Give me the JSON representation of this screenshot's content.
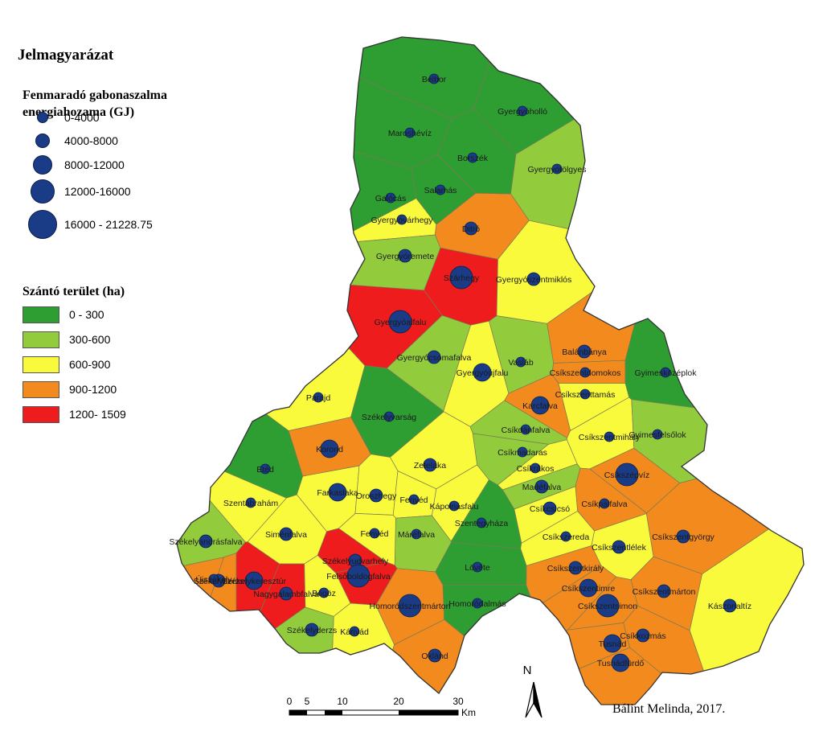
{
  "legend": {
    "title": "Jelmagyarázat",
    "energy_title": "Fenmaradó gabonaszalma energiahozama (GJ)",
    "energy_classes": [
      {
        "label": "0-4000",
        "rank": 1
      },
      {
        "label": "4000-8000",
        "rank": 2
      },
      {
        "label": "8000-12000",
        "rank": 3
      },
      {
        "label": "12000-16000",
        "rank": 4
      },
      {
        "label": "16000 - 21228.75",
        "rank": 5
      }
    ],
    "area_title": "Szántó terület (ha)",
    "area_classes": [
      {
        "label": "0 - 300",
        "color": "#2e9e32"
      },
      {
        "label": "300-600",
        "color": "#92cc3c"
      },
      {
        "label": "600-900",
        "color": "#fafa3c"
      },
      {
        "label": "900-1200",
        "color": "#f28a1e"
      },
      {
        "label": "1200- 1509",
        "color": "#ee1c1c"
      }
    ],
    "dot_color": "#1a3c87"
  },
  "places": [
    {
      "name": "Belbor",
      "lon": 540,
      "lat": 98,
      "area_class": 0,
      "energy_rank": 1
    },
    {
      "name": "Gyergyóholló",
      "lon": 650,
      "lat": 138,
      "area_class": 0,
      "energy_rank": 1
    },
    {
      "name": "Maroshévíz",
      "lon": 510,
      "lat": 165,
      "area_class": 0,
      "energy_rank": 1
    },
    {
      "name": "Borszék",
      "lon": 588,
      "lat": 196,
      "area_class": 0,
      "energy_rank": 1
    },
    {
      "name": "Gyergyótölgyes",
      "lon": 693,
      "lat": 210,
      "area_class": 1,
      "energy_rank": 1
    },
    {
      "name": "Salamás",
      "lon": 548,
      "lat": 236,
      "area_class": 0,
      "energy_rank": 1
    },
    {
      "name": "Galócás",
      "lon": 486,
      "lat": 246,
      "area_class": 0,
      "energy_rank": 1
    },
    {
      "name": "Gyergyóvárhegy",
      "lon": 500,
      "lat": 273,
      "area_class": 2,
      "energy_rank": 1
    },
    {
      "name": "Ditró",
      "lon": 586,
      "lat": 284,
      "area_class": 3,
      "energy_rank": 2
    },
    {
      "name": "Gyergyóremete",
      "lon": 504,
      "lat": 318,
      "area_class": 1,
      "energy_rank": 2
    },
    {
      "name": "Szárhegy",
      "lon": 574,
      "lat": 345,
      "area_class": 4,
      "energy_rank": 4
    },
    {
      "name": "Gyergyószentmiklós",
      "lon": 664,
      "lat": 347,
      "area_class": 2,
      "energy_rank": 2
    },
    {
      "name": "Gyergyóalfalu",
      "lon": 498,
      "lat": 400,
      "area_class": 4,
      "energy_rank": 4
    },
    {
      "name": "Gyergyócsomafalva",
      "lon": 540,
      "lat": 444,
      "area_class": 1,
      "energy_rank": 2
    },
    {
      "name": "Vasláb",
      "lon": 648,
      "lat": 450,
      "area_class": 1,
      "energy_rank": 1
    },
    {
      "name": "Balánbánya",
      "lon": 727,
      "lat": 437,
      "area_class": 3,
      "energy_rank": 2
    },
    {
      "name": "Gyergyóújfalu",
      "lon": 600,
      "lat": 463,
      "area_class": 2,
      "energy_rank": 3
    },
    {
      "name": "Csíkszentdomokos",
      "lon": 728,
      "lat": 463,
      "area_class": 3,
      "energy_rank": 1
    },
    {
      "name": "Gyimesközéplok",
      "lon": 828,
      "lat": 463,
      "area_class": 0,
      "energy_rank": 1
    },
    {
      "name": "Csíkszenttamás",
      "lon": 728,
      "lat": 490,
      "area_class": 2,
      "energy_rank": 1
    },
    {
      "name": "Parajd",
      "lon": 396,
      "lat": 494,
      "area_class": 2,
      "energy_rank": 1
    },
    {
      "name": "Karcfalva",
      "lon": 672,
      "lat": 504,
      "area_class": 3,
      "energy_rank": 3
    },
    {
      "name": "Székelyvarság",
      "lon": 484,
      "lat": 518,
      "area_class": 0,
      "energy_rank": 1
    },
    {
      "name": "Csíkdánfalva",
      "lon": 654,
      "lat": 534,
      "area_class": 1,
      "energy_rank": 1
    },
    {
      "name": "Csíkszentmihály",
      "lon": 758,
      "lat": 543,
      "area_class": 2,
      "energy_rank": 1
    },
    {
      "name": "Gyimesfelsőlok",
      "lon": 818,
      "lat": 540,
      "area_class": 1,
      "energy_rank": 1
    },
    {
      "name": "Korond",
      "lon": 410,
      "lat": 558,
      "area_class": 3,
      "energy_rank": 3
    },
    {
      "name": "Csíkmadaras",
      "lon": 650,
      "lat": 562,
      "area_class": 1,
      "energy_rank": 1
    },
    {
      "name": "Zetelaka",
      "lon": 535,
      "lat": 578,
      "area_class": 2,
      "energy_rank": 2
    },
    {
      "name": "Etéd",
      "lon": 330,
      "lat": 583,
      "area_class": 0,
      "energy_rank": 1
    },
    {
      "name": "Csíkrákos",
      "lon": 666,
      "lat": 582,
      "area_class": 2,
      "energy_rank": 1
    },
    {
      "name": "Csíkszépvíz",
      "lon": 780,
      "lat": 590,
      "area_class": 3,
      "energy_rank": 4
    },
    {
      "name": "Farkaslaka",
      "lon": 420,
      "lat": 612,
      "area_class": 2,
      "energy_rank": 3
    },
    {
      "name": "Madéfalva",
      "lon": 674,
      "lat": 605,
      "area_class": 1,
      "energy_rank": 2
    },
    {
      "name": "Oroszhegy",
      "lon": 468,
      "lat": 616,
      "area_class": 2,
      "energy_rank": 2
    },
    {
      "name": "Fenyéd",
      "lon": 515,
      "lat": 621,
      "area_class": 2,
      "energy_rank": 1
    },
    {
      "name": "Kápolnásfalu",
      "lon": 565,
      "lat": 629,
      "area_class": 2,
      "energy_rank": 1
    },
    {
      "name": "Csíkpálfalva",
      "lon": 752,
      "lat": 626,
      "area_class": 3,
      "energy_rank": 1
    },
    {
      "name": "Csíkcsicsó",
      "lon": 684,
      "lat": 632,
      "area_class": 2,
      "energy_rank": 2
    },
    {
      "name": "Szentábrahám",
      "lon": 312,
      "lat": 625,
      "area_class": 2,
      "energy_rank": 1
    },
    {
      "name": "Szentegyháza",
      "lon": 599,
      "lat": 650,
      "area_class": 0,
      "energy_rank": 1
    },
    {
      "name": "Máréfalva",
      "lon": 518,
      "lat": 664,
      "area_class": 1,
      "energy_rank": 1
    },
    {
      "name": "Fenyéd",
      "lon": 466,
      "lat": 663,
      "area_class": 2,
      "energy_rank": 1
    },
    {
      "name": "Siménfalva",
      "lon": 356,
      "lat": 664,
      "area_class": 2,
      "energy_rank": 2
    },
    {
      "name": "Csíkszentgyörgy",
      "lon": 850,
      "lat": 667,
      "area_class": 3,
      "energy_rank": 2
    },
    {
      "name": "Csíkszereda",
      "lon": 704,
      "lat": 667,
      "area_class": 2,
      "energy_rank": 1
    },
    {
      "name": "Csíkszentlélek",
      "lon": 770,
      "lat": 680,
      "area_class": 2,
      "energy_rank": 2
    },
    {
      "name": "Székelyandrásfalva",
      "lon": 256,
      "lat": 673,
      "area_class": 1,
      "energy_rank": 2
    },
    {
      "name": "Székelyudvarhely",
      "lon": 442,
      "lat": 697,
      "area_class": 4,
      "energy_rank": 2
    },
    {
      "name": "Lövéte",
      "lon": 594,
      "lat": 705,
      "area_class": 0,
      "energy_rank": 1
    },
    {
      "name": "Csíkszentkirály",
      "lon": 716,
      "lat": 706,
      "area_class": 3,
      "energy_rank": 2
    },
    {
      "name": "Székelyderzs",
      "lon": 272,
      "lat": 722,
      "area_class": 3,
      "energy_rank": 2
    },
    {
      "name": "Székelykeresztúr",
      "lon": 316,
      "lat": 722,
      "area_class": 4,
      "energy_rank": 3
    },
    {
      "name": "Felsőboldogfalva",
      "lon": 446,
      "lat": 716,
      "area_class": 4,
      "energy_rank": 4
    },
    {
      "name": "Újszékely",
      "lon": 266,
      "lat": 720,
      "area_class": 3,
      "energy_rank": 1
    },
    {
      "name": "Csíkszentimre",
      "lon": 732,
      "lat": 731,
      "area_class": 3,
      "energy_rank": 3
    },
    {
      "name": "Csíkszentmárton",
      "lon": 826,
      "lat": 735,
      "area_class": 3,
      "energy_rank": 2
    },
    {
      "name": "Nagygalambfalva",
      "lon": 356,
      "lat": 738,
      "area_class": 4,
      "energy_rank": 2
    },
    {
      "name": "Bögöz",
      "lon": 403,
      "lat": 737,
      "area_class": 2,
      "energy_rank": 1
    },
    {
      "name": "Homoródszentmárton",
      "lon": 510,
      "lat": 753,
      "area_class": 3,
      "energy_rank": 4
    },
    {
      "name": "Homoródalmás",
      "lon": 594,
      "lat": 750,
      "area_class": 0,
      "energy_rank": 1
    },
    {
      "name": "Csíkszentsimon",
      "lon": 756,
      "lat": 753,
      "area_class": 3,
      "energy_rank": 4
    },
    {
      "name": "Kászonaltíz",
      "lon": 908,
      "lat": 753,
      "area_class": 2,
      "energy_rank": 2
    },
    {
      "name": "Kányád",
      "lon": 441,
      "lat": 785,
      "area_class": 2,
      "energy_rank": 1
    },
    {
      "name": "Székelyderzs",
      "lon": 388,
      "lat": 783,
      "area_class": 1,
      "energy_rank": 2
    },
    {
      "name": "Csíkkozmás",
      "lon": 800,
      "lat": 790,
      "area_class": 3,
      "energy_rank": 2
    },
    {
      "name": "Tusnád",
      "lon": 762,
      "lat": 800,
      "area_class": 3,
      "energy_rank": 3
    },
    {
      "name": "Oklánd",
      "lon": 541,
      "lat": 815,
      "area_class": 3,
      "energy_rank": 2
    },
    {
      "name": "Tusnádfürdő",
      "lon": 772,
      "lat": 824,
      "area_class": 3,
      "energy_rank": 3
    }
  ],
  "scalebar": {
    "ticks": [
      "0",
      "5",
      "10",
      "20",
      "30"
    ],
    "unit": "Km"
  },
  "north_label": "N",
  "credit": "Bálint Melinda, 2017."
}
